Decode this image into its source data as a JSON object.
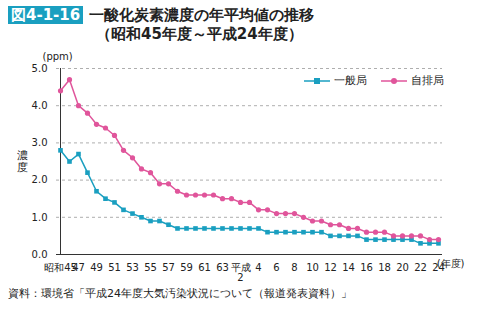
{
  "chart_data": {
    "type": "line",
    "title": "図4-1-16　一酸化炭素濃度の年平均値の推移",
    "subtitle": "（昭和45年度～平成24年度）",
    "y_label": "濃度",
    "y_unit": "(ppm)",
    "x_label": "(年度)",
    "source": "資料：環境省「平成24年度大気汚染状況について（報道発表資料）」",
    "categories": [
      "昭和45",
      null,
      "47",
      null,
      "49",
      null,
      "51",
      null,
      "53",
      null,
      "55",
      null,
      "57",
      null,
      "59",
      null,
      "61",
      null,
      "63",
      null,
      "平成\n2",
      null,
      "4",
      null,
      "6",
      null,
      "8",
      null,
      "10",
      null,
      "12",
      null,
      "14",
      null,
      "16",
      null,
      "18",
      null,
      "20",
      null,
      "22",
      null,
      "24"
    ],
    "series": [
      {
        "name": "一般局",
        "color": "#1a9fc0",
        "marker": "square",
        "values": [
          2.8,
          2.5,
          2.7,
          2.2,
          1.7,
          1.5,
          1.4,
          1.2,
          1.1,
          1.0,
          0.9,
          0.9,
          0.8,
          0.7,
          0.7,
          0.7,
          0.7,
          0.7,
          0.7,
          0.7,
          0.7,
          0.7,
          0.7,
          0.6,
          0.6,
          0.6,
          0.6,
          0.6,
          0.6,
          0.6,
          0.5,
          0.5,
          0.5,
          0.5,
          0.4,
          0.4,
          0.4,
          0.4,
          0.4,
          0.4,
          0.3,
          0.3,
          0.3
        ]
      },
      {
        "name": "自排局",
        "color": "#e0559b",
        "marker": "circle",
        "values": [
          4.4,
          4.7,
          4.0,
          3.8,
          3.5,
          3.4,
          3.2,
          2.8,
          2.6,
          2.3,
          2.2,
          1.9,
          1.9,
          1.7,
          1.6,
          1.6,
          1.6,
          1.6,
          1.5,
          1.5,
          1.4,
          1.4,
          1.2,
          1.2,
          1.1,
          1.1,
          1.1,
          1.0,
          0.9,
          0.9,
          0.8,
          0.8,
          0.7,
          0.7,
          0.6,
          0.6,
          0.6,
          0.5,
          0.5,
          0.5,
          0.5,
          0.4,
          0.4
        ]
      }
    ],
    "ylim": [
      0,
      5
    ],
    "yticks": [
      {
        "value": 0,
        "label": "0.0"
      },
      {
        "value": 1,
        "label": "1.0"
      },
      {
        "value": 2,
        "label": "2.0"
      },
      {
        "value": 3,
        "label": "3.0"
      },
      {
        "value": 4,
        "label": "4.0"
      },
      {
        "value": 5,
        "label": "5.0"
      }
    ],
    "grid": true,
    "legend": "top-right"
  }
}
